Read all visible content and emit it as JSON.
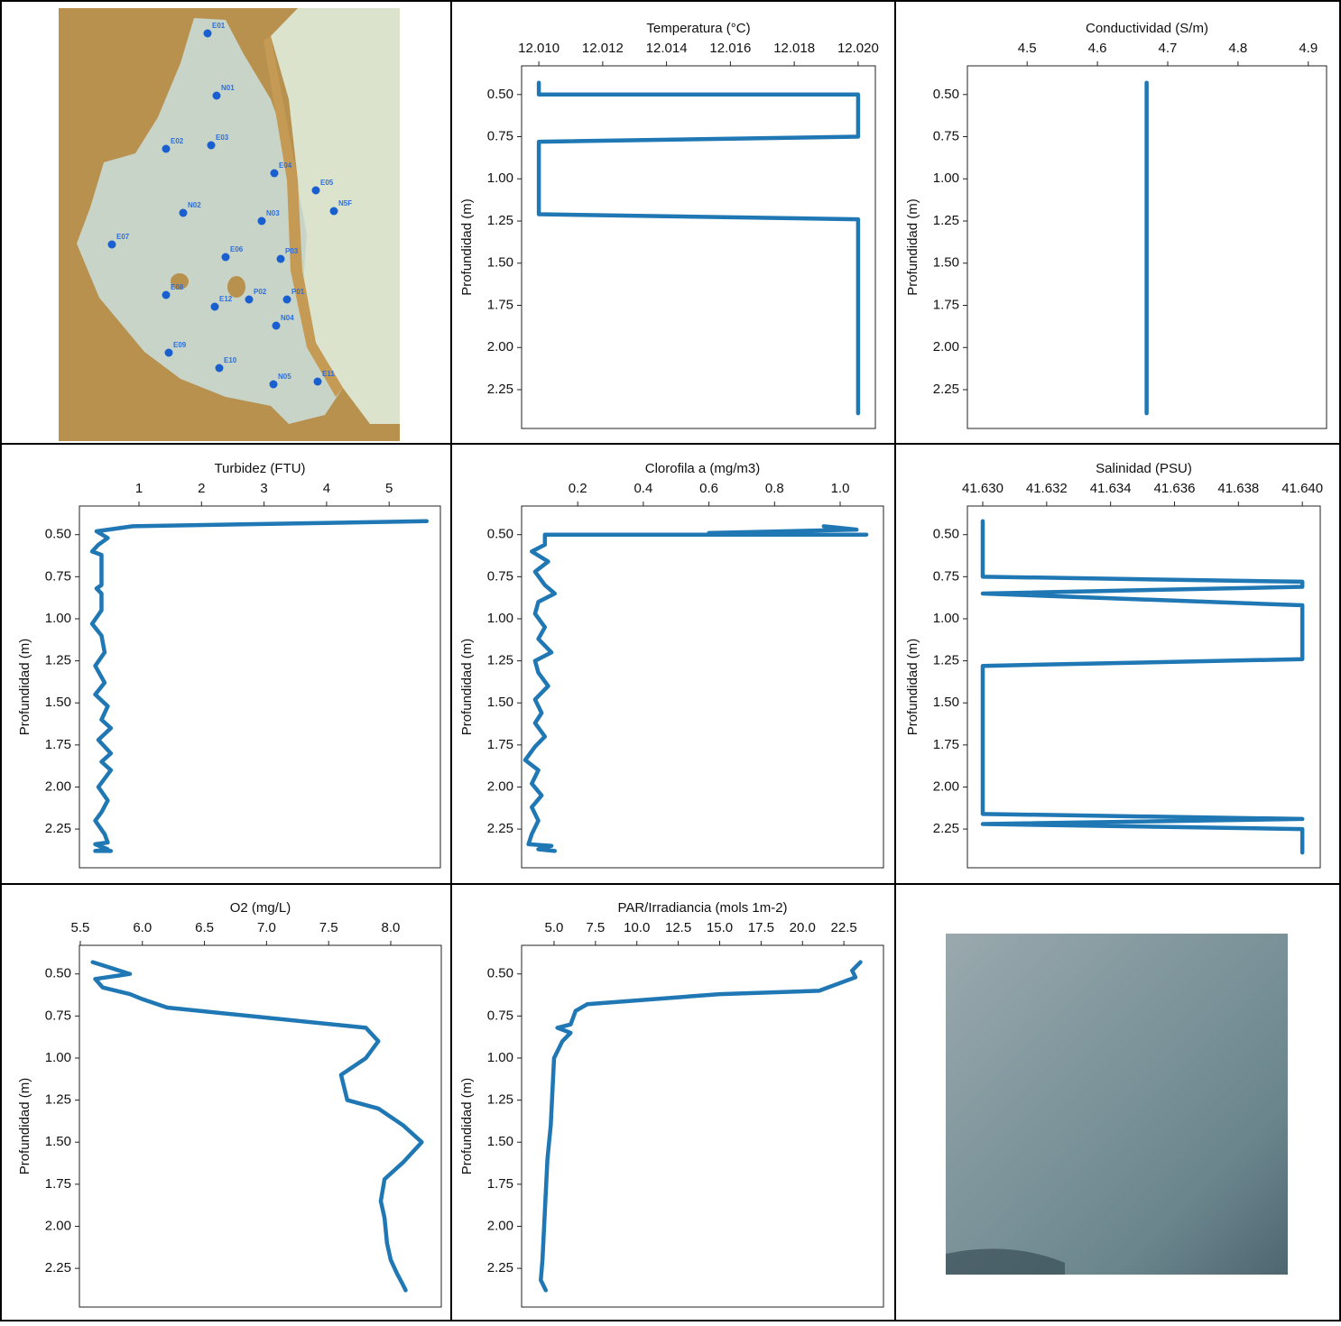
{
  "chart_data": [
    {
      "type": "line",
      "title": "Temperatura (°C)",
      "ylabel": "Profundidad (m)",
      "color": "#1f77b4",
      "x": [
        12.01,
        12.01,
        12.02,
        12.02,
        12.01,
        12.01,
        12.02,
        12.02
      ],
      "values": [
        0.43,
        0.5,
        0.5,
        0.75,
        0.78,
        1.21,
        1.24,
        2.39
      ],
      "xlim": [
        12.00946,
        12.02054
      ],
      "xticks": [
        {
          "value": 12.01,
          "label": "12.010"
        },
        {
          "value": 12.012,
          "label": "12.012"
        },
        {
          "value": 12.014,
          "label": "12.014"
        },
        {
          "value": 12.016,
          "label": "12.016"
        },
        {
          "value": 12.018,
          "label": "12.018"
        },
        {
          "value": 12.02,
          "label": "12.020"
        }
      ],
      "ylim": [
        2.48,
        0.33
      ],
      "yticks": [
        {
          "value": 0.5,
          "label": "0.50"
        },
        {
          "value": 0.75,
          "label": "0.75"
        },
        {
          "value": 1.0,
          "label": "1.00"
        },
        {
          "value": 1.25,
          "label": "1.25"
        },
        {
          "value": 1.5,
          "label": "1.50"
        },
        {
          "value": 1.75,
          "label": "1.75"
        },
        {
          "value": 2.0,
          "label": "2.00"
        },
        {
          "value": 2.25,
          "label": "2.25"
        }
      ]
    },
    {
      "type": "line",
      "title": "Conductividad (S/m)",
      "ylabel": "Profundidad (m)",
      "color": "#1f77b4",
      "x": [
        4.67,
        4.67
      ],
      "values": [
        0.43,
        2.39
      ],
      "xlim": [
        4.415,
        4.926
      ],
      "xticks": [
        4.5,
        4.6,
        4.7,
        4.8,
        4.9
      ],
      "ylim": [
        2.48,
        0.33
      ],
      "yticks": [
        {
          "value": 0.5,
          "label": "0.50"
        },
        {
          "value": 0.75,
          "label": "0.75"
        },
        {
          "value": 1.0,
          "label": "1.00"
        },
        {
          "value": 1.25,
          "label": "1.25"
        },
        {
          "value": 1.5,
          "label": "1.50"
        },
        {
          "value": 1.75,
          "label": "1.75"
        },
        {
          "value": 2.0,
          "label": "2.00"
        },
        {
          "value": 2.25,
          "label": "2.25"
        }
      ]
    },
    {
      "type": "line",
      "title": "Turbidez (FTU)",
      "ylabel": "Profundidad (m)",
      "color": "#1f77b4",
      "x": [
        5.6,
        0.9,
        0.32,
        0.5,
        0.35,
        0.25,
        0.4,
        0.4,
        0.32,
        0.4,
        0.4,
        0.25,
        0.4,
        0.45,
        0.3,
        0.45,
        0.3,
        0.5,
        0.4,
        0.55,
        0.35,
        0.55,
        0.4,
        0.55,
        0.35,
        0.5,
        0.4,
        0.3,
        0.45,
        0.5,
        0.3,
        0.5,
        0.3,
        0.55
      ],
      "values": [
        0.42,
        0.45,
        0.48,
        0.52,
        0.56,
        0.6,
        0.62,
        0.8,
        0.82,
        0.85,
        0.95,
        1.03,
        1.1,
        1.2,
        1.28,
        1.38,
        1.45,
        1.52,
        1.6,
        1.65,
        1.72,
        1.8,
        1.85,
        1.9,
        2.0,
        2.08,
        2.15,
        2.2,
        2.28,
        2.33,
        2.34,
        2.37,
        2.38,
        2.38
      ],
      "xlim": [
        0.047,
        5.82
      ],
      "xticks": [
        1,
        2,
        3,
        4,
        5
      ],
      "ylim": [
        2.48,
        0.33
      ],
      "yticks": [
        {
          "value": 0.5,
          "label": "0.50"
        },
        {
          "value": 0.75,
          "label": "0.75"
        },
        {
          "value": 1.0,
          "label": "1.00"
        },
        {
          "value": 1.25,
          "label": "1.25"
        },
        {
          "value": 1.5,
          "label": "1.50"
        },
        {
          "value": 1.75,
          "label": "1.75"
        },
        {
          "value": 2.0,
          "label": "2.00"
        },
        {
          "value": 2.25,
          "label": "2.25"
        }
      ]
    },
    {
      "type": "line",
      "title": "Clorofila a (mg/m3)",
      "ylabel": "Profundidad (m)",
      "color": "#1f77b4",
      "x": [
        0.95,
        1.05,
        0.6,
        1.08,
        0.1,
        0.1,
        0.06,
        0.11,
        0.07,
        0.1,
        0.13,
        0.08,
        0.07,
        0.1,
        0.08,
        0.12,
        0.07,
        0.08,
        0.11,
        0.07,
        0.09,
        0.07,
        0.1,
        0.07,
        0.04,
        0.08,
        0.06,
        0.09,
        0.06,
        0.08,
        0.06,
        0.05,
        0.12,
        0.08,
        0.13
      ],
      "values": [
        0.45,
        0.47,
        0.49,
        0.5,
        0.5,
        0.56,
        0.6,
        0.66,
        0.72,
        0.8,
        0.85,
        0.9,
        0.97,
        1.05,
        1.12,
        1.2,
        1.25,
        1.32,
        1.4,
        1.48,
        1.56,
        1.62,
        1.7,
        1.76,
        1.84,
        1.9,
        1.98,
        2.05,
        2.12,
        2.2,
        2.28,
        2.34,
        2.35,
        2.37,
        2.38
      ],
      "xlim": [
        0.029,
        1.132
      ],
      "xticks": [
        0.2,
        0.4,
        0.6,
        0.8,
        {
          "value": 1.0,
          "label": "1.0"
        }
      ],
      "ylim": [
        2.48,
        0.33
      ],
      "yticks": [
        {
          "value": 0.5,
          "label": "0.50"
        },
        {
          "value": 0.75,
          "label": "0.75"
        },
        {
          "value": 1.0,
          "label": "1.00"
        },
        {
          "value": 1.25,
          "label": "1.25"
        },
        {
          "value": 1.5,
          "label": "1.50"
        },
        {
          "value": 1.75,
          "label": "1.75"
        },
        {
          "value": 2.0,
          "label": "2.00"
        },
        {
          "value": 2.25,
          "label": "2.25"
        }
      ]
    },
    {
      "type": "line",
      "title": "Salinidad (PSU)",
      "ylabel": "Profundidad (m)",
      "color": "#1f77b4",
      "x": [
        41.63,
        41.63,
        41.64,
        41.64,
        41.63,
        41.64,
        41.64,
        41.63,
        41.63,
        41.64,
        41.63,
        41.64,
        41.64
      ],
      "values": [
        0.42,
        0.75,
        0.78,
        0.81,
        0.85,
        0.92,
        1.24,
        1.28,
        2.16,
        2.19,
        2.22,
        2.25,
        2.39
      ],
      "xlim": [
        41.62952,
        41.64056
      ],
      "xticks": [
        {
          "value": 41.63,
          "label": "41.630"
        },
        {
          "value": 41.632,
          "label": "41.632"
        },
        {
          "value": 41.634,
          "label": "41.634"
        },
        {
          "value": 41.636,
          "label": "41.636"
        },
        {
          "value": 41.638,
          "label": "41.638"
        },
        {
          "value": 41.64,
          "label": "41.640"
        }
      ],
      "ylim": [
        2.48,
        0.33
      ],
      "yticks": [
        {
          "value": 0.5,
          "label": "0.50"
        },
        {
          "value": 0.75,
          "label": "0.75"
        },
        {
          "value": 1.0,
          "label": "1.00"
        },
        {
          "value": 1.25,
          "label": "1.25"
        },
        {
          "value": 1.5,
          "label": "1.50"
        },
        {
          "value": 1.75,
          "label": "1.75"
        },
        {
          "value": 2.0,
          "label": "2.00"
        },
        {
          "value": 2.25,
          "label": "2.25"
        }
      ]
    },
    {
      "type": "line",
      "title": "O2 (mg/L)",
      "ylabel": "Profundidad (m)",
      "color": "#1f77b4",
      "x": [
        5.6,
        5.9,
        5.62,
        5.68,
        5.9,
        6.0,
        6.2,
        7.8,
        7.9,
        7.8,
        7.6,
        7.65,
        7.9,
        8.1,
        8.25,
        8.1,
        7.95,
        7.92,
        7.95,
        7.97,
        8.0,
        8.05,
        8.1,
        8.12
      ],
      "values": [
        0.43,
        0.5,
        0.53,
        0.58,
        0.62,
        0.65,
        0.7,
        0.82,
        0.9,
        1.0,
        1.1,
        1.25,
        1.3,
        1.4,
        1.5,
        1.62,
        1.72,
        1.85,
        1.95,
        2.1,
        2.2,
        2.28,
        2.35,
        2.38
      ],
      "xlim": [
        5.493,
        8.407
      ],
      "xticks": [
        5.5,
        {
          "value": 6.0,
          "label": "6.0"
        },
        6.5,
        {
          "value": 7.0,
          "label": "7.0"
        },
        7.5,
        {
          "value": 8.0,
          "label": "8.0"
        }
      ],
      "ylim": [
        2.48,
        0.33
      ],
      "yticks": [
        {
          "value": 0.5,
          "label": "0.50"
        },
        {
          "value": 0.75,
          "label": "0.75"
        },
        {
          "value": 1.0,
          "label": "1.00"
        },
        {
          "value": 1.25,
          "label": "1.25"
        },
        {
          "value": 1.5,
          "label": "1.50"
        },
        {
          "value": 1.75,
          "label": "1.75"
        },
        {
          "value": 2.0,
          "label": "2.00"
        },
        {
          "value": 2.25,
          "label": "2.25"
        }
      ]
    },
    {
      "type": "line",
      "title": "PAR/Irradiancia (mols 1m-2)",
      "ylabel": "Profundidad (m)",
      "color": "#1f77b4",
      "x": [
        23.5,
        23.0,
        23.2,
        21.0,
        15.0,
        7.0,
        6.3,
        6.0,
        5.2,
        6.0,
        5.5,
        5.0,
        4.9,
        4.8,
        4.6,
        4.5,
        4.4,
        4.3,
        4.2,
        4.5
      ],
      "values": [
        0.43,
        0.48,
        0.52,
        0.6,
        0.62,
        0.68,
        0.72,
        0.8,
        0.82,
        0.85,
        0.9,
        1.0,
        1.2,
        1.4,
        1.6,
        1.8,
        2.0,
        2.2,
        2.32,
        2.38
      ],
      "xlim": [
        3.04,
        24.89
      ],
      "xticks": [
        {
          "value": 5.0,
          "label": "5.0"
        },
        7.5,
        {
          "value": 10.0,
          "label": "10.0"
        },
        12.5,
        {
          "value": 15.0,
          "label": "15.0"
        },
        17.5,
        {
          "value": 20.0,
          "label": "20.0"
        },
        22.5
      ],
      "ylim": [
        2.48,
        0.33
      ],
      "yticks": [
        {
          "value": 0.5,
          "label": "0.50"
        },
        {
          "value": 0.75,
          "label": "0.75"
        },
        {
          "value": 1.0,
          "label": "1.00"
        },
        {
          "value": 1.25,
          "label": "1.25"
        },
        {
          "value": 1.5,
          "label": "1.50"
        },
        {
          "value": 1.75,
          "label": "1.75"
        },
        {
          "value": 2.0,
          "label": "2.00"
        },
        {
          "value": 2.25,
          "label": "2.25"
        }
      ]
    }
  ],
  "map": {
    "stations": [
      "E01",
      "N01",
      "E02",
      "E03",
      "E04",
      "E05",
      "N5F",
      "N02",
      "N03",
      "E07",
      "E06",
      "P03",
      "E08",
      "P02",
      "P01",
      "E12",
      "N04",
      "E09",
      "E10",
      "N05",
      "E11"
    ]
  }
}
